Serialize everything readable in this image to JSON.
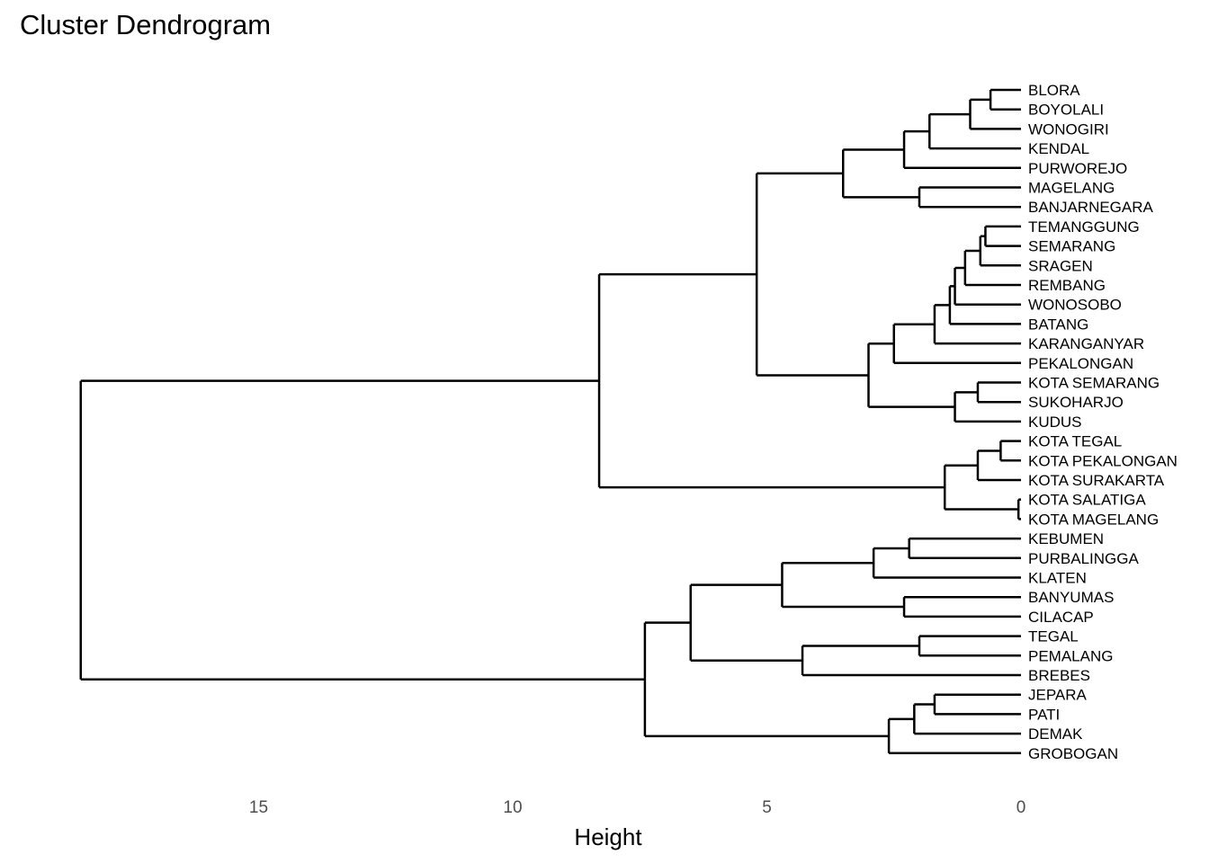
{
  "chart_data": {
    "type": "dendrogram",
    "title": "Cluster Dendrogram",
    "xlabel": "Height",
    "x_axis_reversed": true,
    "xlim": [
      18.6,
      0
    ],
    "xticks": [
      15,
      10,
      5,
      0
    ],
    "grid": false,
    "leaves": [
      "BLORA",
      "BOYOLALI",
      "WONOGIRI",
      "KENDAL",
      "PURWOREJO",
      "MAGELANG",
      "BANJARNEGARA",
      "TEMANGGUNG",
      "SEMARANG",
      "SRAGEN",
      "REMBANG",
      "WONOSOBO",
      "BATANG",
      "KARANGANYAR",
      "PEKALONGAN",
      "KOTA SEMARANG",
      "SUKOHARJO",
      "KUDUS",
      "KOTA TEGAL",
      "KOTA PEKALONGAN",
      "KOTA SURAKARTA",
      "KOTA SALATIGA",
      "KOTA MAGELANG",
      "KEBUMEN",
      "PURBALINGGA",
      "KLATEN",
      "BANYUMAS",
      "CILACAP",
      "TEGAL",
      "PEMALANG",
      "BREBES",
      "JEPARA",
      "PATI",
      "DEMAK",
      "GROBOGAN"
    ],
    "tree": {
      "h": 18.5,
      "c": [
        {
          "h": 8.3,
          "c": [
            {
              "h": 5.2,
              "c": [
                {
                  "h": 3.5,
                  "c": [
                    {
                      "h": 2.3,
                      "c": [
                        {
                          "h": 1.8,
                          "c": [
                            {
                              "h": 1.0,
                              "c": [
                                {
                                  "h": 0.6,
                                  "c": [
                                    {
                                      "l": 0
                                    },
                                    {
                                      "l": 1
                                    }
                                  ]
                                },
                                {
                                  "l": 2
                                }
                              ]
                            },
                            {
                              "l": 3
                            }
                          ]
                        },
                        {
                          "l": 4
                        }
                      ]
                    },
                    {
                      "h": 2.0,
                      "c": [
                        {
                          "l": 5
                        },
                        {
                          "l": 6
                        }
                      ]
                    }
                  ]
                },
                {
                  "h": 3.0,
                  "c": [
                    {
                      "h": 2.5,
                      "c": [
                        {
                          "h": 1.7,
                          "c": [
                            {
                              "h": 1.4,
                              "c": [
                                {
                                  "h": 1.3,
                                  "c": [
                                    {
                                      "h": 1.1,
                                      "c": [
                                        {
                                          "h": 0.8,
                                          "c": [
                                            {
                                              "h": 0.7,
                                              "c": [
                                                {
                                                  "l": 7
                                                },
                                                {
                                                  "l": 8
                                                }
                                              ]
                                            },
                                            {
                                              "l": 9
                                            }
                                          ]
                                        },
                                        {
                                          "l": 10
                                        }
                                      ]
                                    },
                                    {
                                      "l": 11
                                    }
                                  ]
                                },
                                {
                                  "l": 12
                                }
                              ]
                            },
                            {
                              "l": 13
                            }
                          ]
                        },
                        {
                          "l": 14
                        }
                      ]
                    },
                    {
                      "h": 1.3,
                      "c": [
                        {
                          "h": 0.85,
                          "c": [
                            {
                              "l": 15
                            },
                            {
                              "l": 16
                            }
                          ]
                        },
                        {
                          "l": 17
                        }
                      ]
                    }
                  ]
                }
              ]
            },
            {
              "h": 1.5,
              "c": [
                {
                  "h": 0.85,
                  "c": [
                    {
                      "h": 0.4,
                      "c": [
                        {
                          "l": 18
                        },
                        {
                          "l": 19
                        }
                      ]
                    },
                    {
                      "l": 20
                    }
                  ]
                },
                {
                  "h": 0.05,
                  "c": [
                    {
                      "l": 21
                    },
                    {
                      "l": 22
                    }
                  ]
                }
              ]
            }
          ]
        },
        {
          "h": 7.4,
          "c": [
            {
              "h": 6.5,
              "c": [
                {
                  "h": 4.7,
                  "c": [
                    {
                      "h": 2.9,
                      "c": [
                        {
                          "h": 2.2,
                          "c": [
                            {
                              "l": 23
                            },
                            {
                              "l": 24
                            }
                          ]
                        },
                        {
                          "l": 25
                        }
                      ]
                    },
                    {
                      "h": 2.3,
                      "c": [
                        {
                          "l": 26
                        },
                        {
                          "l": 27
                        }
                      ]
                    }
                  ]
                },
                {
                  "h": 4.3,
                  "c": [
                    {
                      "h": 2.0,
                      "c": [
                        {
                          "l": 28
                        },
                        {
                          "l": 29
                        }
                      ]
                    },
                    {
                      "l": 30
                    }
                  ]
                }
              ]
            },
            {
              "h": 2.6,
              "c": [
                {
                  "h": 2.1,
                  "c": [
                    {
                      "h": 1.7,
                      "c": [
                        {
                          "l": 31
                        },
                        {
                          "l": 32
                        }
                      ]
                    },
                    {
                      "l": 33
                    }
                  ]
                },
                {
                  "l": 34
                }
              ]
            }
          ]
        }
      ]
    }
  }
}
